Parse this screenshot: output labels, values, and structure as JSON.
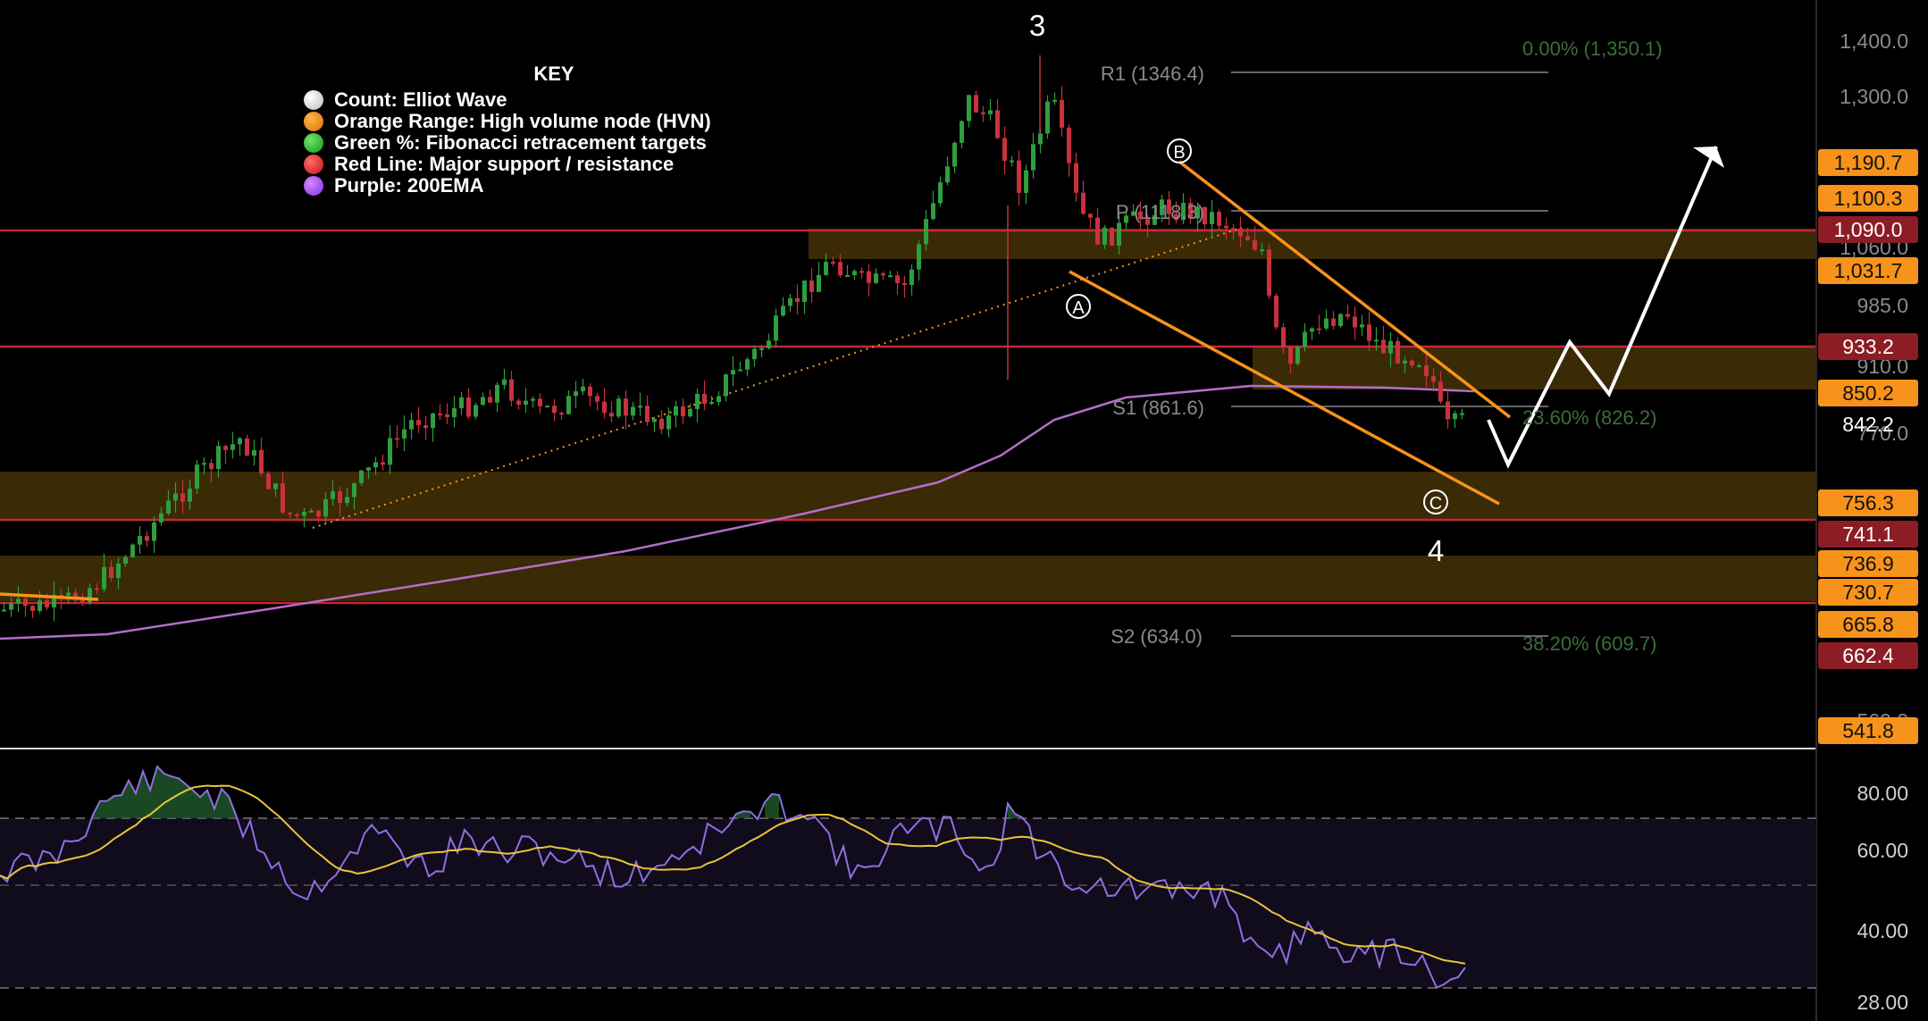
{
  "key": {
    "title": "KEY",
    "items": [
      {
        "label": "Count: Elliot Wave",
        "color": "#e6e6e6"
      },
      {
        "label": "Orange Range: High volume node (HVN)",
        "color": "#f7931a"
      },
      {
        "label": "Green %: Fibonacci retracement targets",
        "color": "#22c55e"
      },
      {
        "label": "Red Line: Major support / resistance",
        "color": "#ef2b2b"
      },
      {
        "label": "Purple: 200EMA",
        "color": "#a855f7"
      }
    ]
  },
  "colors": {
    "background": "#000000",
    "candle_up": "#2e9e3e",
    "candle_down": "#c8323c",
    "hvn_zone": "#3a2a06",
    "support_line": "#c0283a",
    "ema": "#b46ec8",
    "fib_text": "#3c6e3a",
    "pivot_text": "#8a8a8a",
    "channel": "#f7931a",
    "projection": "#ffffff",
    "rsi_line": "#8f6fe0",
    "rsi_ma": "#e8c53a",
    "price_tag_orange": "#f7931a",
    "price_tag_red": "#8c1d24"
  },
  "price_axis": {
    "labels": [
      "1,400.0",
      "1,300.0",
      "1,060.0",
      "985.0",
      "910.0",
      "770.0",
      "560.0"
    ],
    "tags": [
      {
        "value": "1,190.7",
        "style": "orange"
      },
      {
        "value": "1,100.3",
        "style": "orange"
      },
      {
        "value": "1,090.0",
        "style": "red"
      },
      {
        "value": "1,031.7",
        "style": "orange"
      },
      {
        "value": "933.2",
        "style": "red"
      },
      {
        "value": "850.2",
        "style": "orange"
      },
      {
        "value": "842.2",
        "style": "plain"
      },
      {
        "value": "756.3",
        "style": "orange"
      },
      {
        "value": "741.1",
        "style": "red"
      },
      {
        "value": "736.9",
        "style": "orange"
      },
      {
        "value": "730.7",
        "style": "orange"
      },
      {
        "value": "665.8",
        "style": "orange"
      },
      {
        "value": "662.4",
        "style": "red"
      },
      {
        "value": "541.8",
        "style": "orange"
      }
    ]
  },
  "rsi_axis": {
    "labels": [
      "80.00",
      "60.00",
      "40.00",
      "28.00"
    ]
  },
  "annotations": {
    "wave_3": "3",
    "wave_4": "4",
    "wave_a": "A",
    "wave_b": "B",
    "wave_c": "C",
    "pivot_r1": "R1 (1346.4)",
    "pivot_p": "P (1118.3)",
    "pivot_s1": "S1 (861.6)",
    "pivot_s2": "S2 (634.0)",
    "fib_0": "0.00% (1,350.1)",
    "fib_236": "23.60% (826.2)",
    "fib_382": "38.20% (609.7)"
  },
  "chart_data": {
    "type": "candlestick",
    "y_range": [
      520,
      1430
    ],
    "support_resistance": [
      1090.0,
      933.2,
      741.1,
      662.4
    ],
    "hvn_zones": [
      [
        1031.7,
        1090.0
      ],
      [
        850.2,
        933.2
      ],
      [
        741.1,
        800.0
      ],
      [
        665.8,
        736.9
      ]
    ],
    "pivots": {
      "R1": 1346.4,
      "P": 1118.3,
      "S1": 861.6,
      "S2": 634.0
    },
    "fibonacci": {
      "0.00%": 1350.1,
      "23.60%": 826.2,
      "38.20%": 609.7
    },
    "last_price": 842.2,
    "rsi_range": [
      26,
      88
    ],
    "rsi_levels": [
      70,
      50,
      30
    ]
  }
}
